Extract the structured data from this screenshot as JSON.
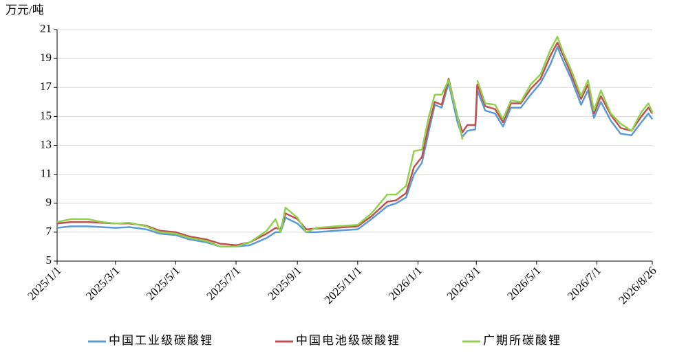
{
  "chart_data": {
    "type": "line",
    "y_label": "万元/吨",
    "x": [
      "2025/1/1",
      "2025/1/15",
      "2025/2/1",
      "2025/2/15",
      "2025/3/1",
      "2025/3/15",
      "2025/4/1",
      "2025/4/15",
      "2025/5/1",
      "2025/5/15",
      "2025/6/1",
      "2025/6/15",
      "2025/7/1",
      "2025/7/15",
      "2025/8/1",
      "2025/8/10",
      "2025/8/15",
      "2025/8/20",
      "2025/9/1",
      "2025/9/10",
      "2025/9/20",
      "2025/10/10",
      "2025/11/1",
      "2025/11/15",
      "2025/12/1",
      "2025/12/10",
      "2025/12/20",
      "2025/12/28",
      "2026/1/5",
      "2026/1/12",
      "2026/1/18",
      "2026/1/25",
      "2026/2/1",
      "2026/2/10",
      "2026/2/15",
      "2026/2/20",
      "2026/2/28",
      "2026/3/2",
      "2026/3/10",
      "2026/3/20",
      "2026/3/28",
      "2026/4/5",
      "2026/4/15",
      "2026/4/25",
      "2026/5/5",
      "2026/5/15",
      "2026/5/22",
      "2026/5/28",
      "2026/6/5",
      "2026/6/15",
      "2026/6/22",
      "2026/6/28",
      "2026/7/5",
      "2026/7/15",
      "2026/7/25",
      "2026/8/5",
      "2026/8/15",
      "2026/8/22",
      "2026/8/26"
    ],
    "series": [
      {
        "name": "中国工业级碳酸锂",
        "color": "#5b9bd5",
        "values": [
          7.3,
          7.4,
          7.4,
          7.35,
          7.3,
          7.35,
          7.2,
          6.9,
          6.8,
          6.5,
          6.3,
          6.0,
          6.0,
          6.1,
          6.6,
          7.0,
          7.0,
          8.0,
          7.6,
          7.0,
          7.0,
          7.1,
          7.2,
          7.9,
          8.8,
          9.0,
          9.4,
          11.0,
          11.8,
          14.0,
          15.8,
          15.6,
          17.3,
          14.6,
          13.6,
          14.0,
          14.1,
          16.8,
          15.4,
          15.2,
          14.3,
          15.6,
          15.6,
          16.5,
          17.3,
          18.6,
          19.8,
          18.8,
          17.6,
          15.8,
          16.8,
          14.9,
          16.0,
          14.7,
          13.8,
          13.7,
          14.6,
          15.2,
          14.8
        ]
      },
      {
        "name": "中国电池级碳酸锂",
        "color": "#c0504d",
        "values": [
          7.6,
          7.7,
          7.7,
          7.65,
          7.6,
          7.6,
          7.45,
          7.1,
          7.0,
          6.7,
          6.5,
          6.2,
          6.1,
          6.3,
          6.9,
          7.3,
          7.2,
          8.3,
          7.9,
          7.2,
          7.25,
          7.3,
          7.4,
          8.1,
          9.1,
          9.2,
          9.7,
          11.5,
          12.2,
          14.4,
          16.0,
          15.8,
          17.6,
          15.0,
          13.9,
          14.4,
          14.4,
          17.2,
          15.7,
          15.5,
          14.6,
          15.9,
          15.9,
          16.9,
          17.6,
          19.2,
          20.1,
          19.2,
          17.9,
          16.2,
          17.2,
          15.2,
          16.4,
          15.1,
          14.2,
          14.0,
          15.0,
          15.6,
          15.2
        ]
      },
      {
        "name": "广期所碳酸锂",
        "color": "#92d050",
        "values": [
          7.7,
          7.9,
          7.9,
          7.7,
          7.6,
          7.65,
          7.4,
          7.0,
          6.9,
          6.6,
          6.4,
          6.0,
          6.0,
          6.3,
          7.1,
          7.9,
          7.0,
          8.7,
          8.0,
          7.0,
          7.3,
          7.4,
          7.5,
          8.3,
          9.6,
          9.6,
          10.2,
          12.6,
          12.7,
          15.0,
          16.5,
          16.5,
          17.5,
          15.0,
          13.4,
          null,
          null,
          17.5,
          15.9,
          15.8,
          14.8,
          16.1,
          16.0,
          17.2,
          17.9,
          19.6,
          20.5,
          19.4,
          18.2,
          16.4,
          17.5,
          15.4,
          16.8,
          15.2,
          14.5,
          14.0,
          15.3,
          15.9,
          15.3
        ]
      }
    ],
    "xlim": [
      "2025/1/1",
      "2026/8/26"
    ],
    "xticks": [
      "2025/1/1",
      "2025/3/1",
      "2025/5/1",
      "2025/7/1",
      "2025/9/1",
      "2025/11/1",
      "2026/1/1",
      "2026/3/1",
      "2026/5/1",
      "2026/7/1",
      "2026/8/26"
    ],
    "ylim": [
      5,
      21
    ],
    "yticks": [
      5,
      7,
      9,
      11,
      13,
      15,
      17,
      19,
      21
    ],
    "grid": true,
    "legend": "bottom"
  }
}
